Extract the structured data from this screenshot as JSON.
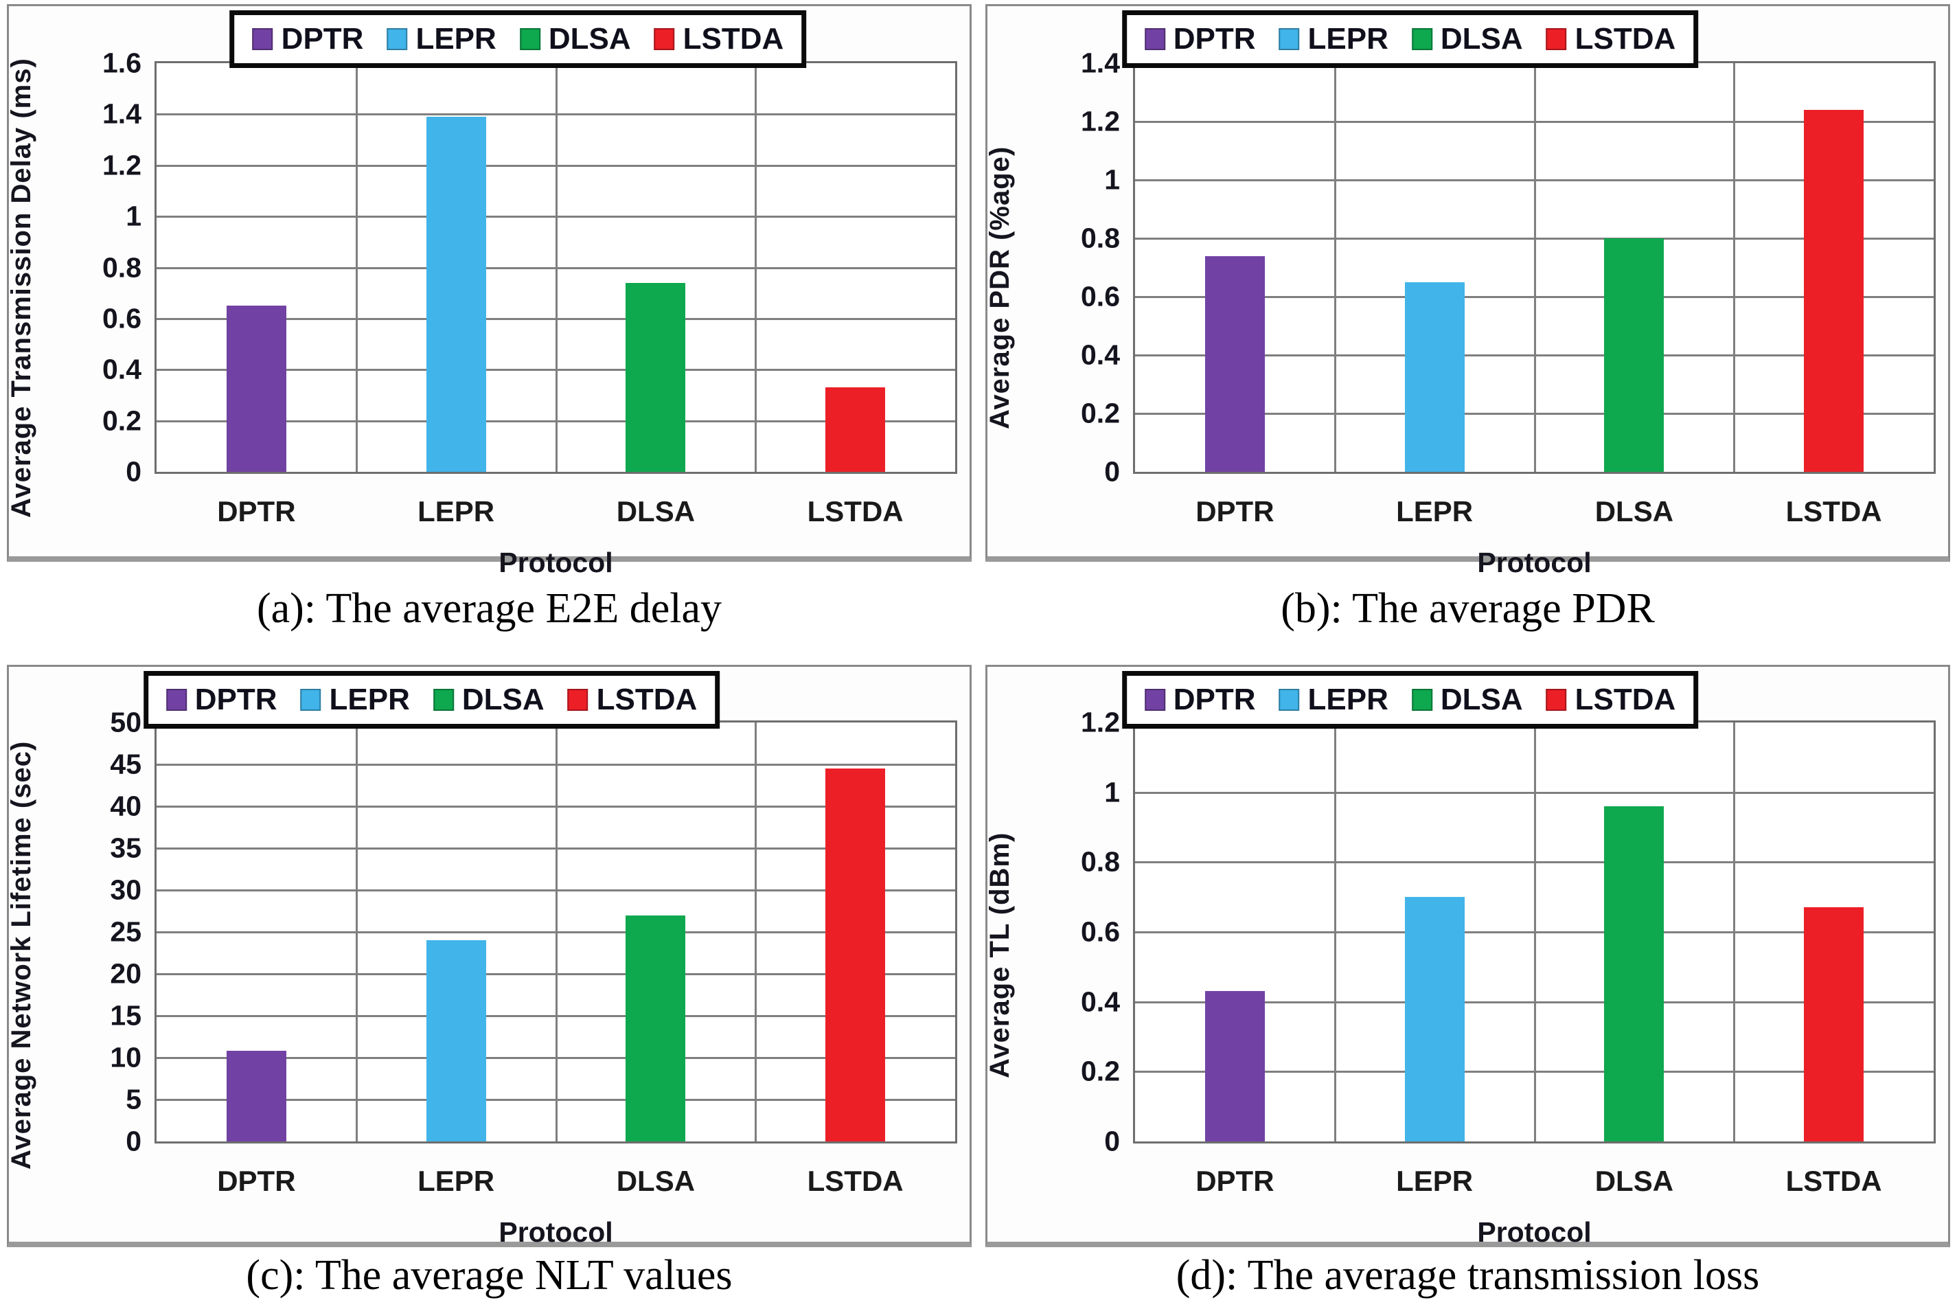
{
  "page": {
    "background": "#ffffff"
  },
  "colors": {
    "DPTR": "#7142A3",
    "LEPR": "#41B4E9",
    "DLSA": "#0EA84E",
    "LSTDA": "#EC1F27",
    "gridline": "#7F7F7F",
    "plot_border": "#6E6E6E",
    "tick_text": "#14141E",
    "caption_text": "#000000",
    "legend_border": "#0A0A0A"
  },
  "legend": {
    "position": "top",
    "items": [
      {
        "key": "DPTR",
        "label": "DPTR"
      },
      {
        "key": "LEPR",
        "label": "LEPR"
      },
      {
        "key": "DLSA",
        "label": "DLSA"
      },
      {
        "key": "LSTDA",
        "label": "LSTDA"
      }
    ]
  },
  "chart_data": [
    {
      "id": "a",
      "type": "bar",
      "caption": "(a): The average E2E delay",
      "title": "",
      "xlabel": "Protocol",
      "ylabel": "Average Transmission Delay (ms)",
      "categories": [
        "DPTR",
        "LEPR",
        "DLSA",
        "LSTDA"
      ],
      "values": [
        0.65,
        1.39,
        0.74,
        0.33
      ],
      "bar_colors": [
        "#7142A3",
        "#41B4E9",
        "#0EA84E",
        "#EC1F27"
      ],
      "ylim": [
        0,
        1.6
      ],
      "ystep": 0.2,
      "ytick_labels": [
        "0",
        "0.2",
        "0.4",
        "0.6",
        "0.8",
        "1",
        "1.2",
        "1.4",
        "1.6"
      ],
      "grid": true,
      "legend_position": "top",
      "legend_entries": [
        "DPTR",
        "LEPR",
        "DLSA",
        "LSTDA"
      ]
    },
    {
      "id": "b",
      "type": "bar",
      "caption": "(b): The average PDR",
      "title": "",
      "xlabel": "Protocol",
      "ylabel": "Average PDR (%age)",
      "categories": [
        "DPTR",
        "LEPR",
        "DLSA",
        "LSTDA"
      ],
      "values": [
        0.74,
        0.65,
        0.8,
        1.24
      ],
      "bar_colors": [
        "#7142A3",
        "#41B4E9",
        "#0EA84E",
        "#EC1F27"
      ],
      "ylim": [
        0,
        1.4
      ],
      "ystep": 0.2,
      "ytick_labels": [
        "0",
        "0.2",
        "0.4",
        "0.6",
        "0.8",
        "1",
        "1.2",
        "1.4"
      ],
      "grid": true,
      "legend_position": "top",
      "legend_entries": [
        "DPTR",
        "LEPR",
        "DLSA",
        "LSTDA"
      ]
    },
    {
      "id": "c",
      "type": "bar",
      "caption": "(c): The average NLT values",
      "title": "",
      "xlabel": "Protocol",
      "ylabel": "Average Network Lifetime (sec)",
      "categories": [
        "DPTR",
        "LEPR",
        "DLSA",
        "LSTDA"
      ],
      "values": [
        10.8,
        24,
        27,
        44.5
      ],
      "bar_colors": [
        "#7142A3",
        "#41B4E9",
        "#0EA84E",
        "#EC1F27"
      ],
      "ylim": [
        0,
        50
      ],
      "ystep": 5,
      "ytick_labels": [
        "0",
        "5",
        "10",
        "15",
        "20",
        "25",
        "30",
        "35",
        "40",
        "45",
        "50"
      ],
      "grid": true,
      "legend_position": "top",
      "legend_entries": [
        "DPTR",
        "LEPR",
        "DLSA",
        "LSTDA"
      ]
    },
    {
      "id": "d",
      "type": "bar",
      "caption": "(d): The average transmission loss",
      "title": "",
      "xlabel": "Protocol",
      "ylabel": "Average TL (dBm)",
      "categories": [
        "DPTR",
        "LEPR",
        "DLSA",
        "LSTDA"
      ],
      "values": [
        0.43,
        0.7,
        0.96,
        0.67
      ],
      "bar_colors": [
        "#7142A3",
        "#41B4E9",
        "#0EA84E",
        "#EC1F27"
      ],
      "ylim": [
        0,
        1.2
      ],
      "ystep": 0.2,
      "ytick_labels": [
        "0",
        "0.2",
        "0.4",
        "0.6",
        "0.8",
        "1",
        "1.2"
      ],
      "grid": true,
      "legend_position": "top",
      "legend_entries": [
        "DPTR",
        "LEPR",
        "DLSA",
        "LSTDA"
      ]
    }
  ]
}
